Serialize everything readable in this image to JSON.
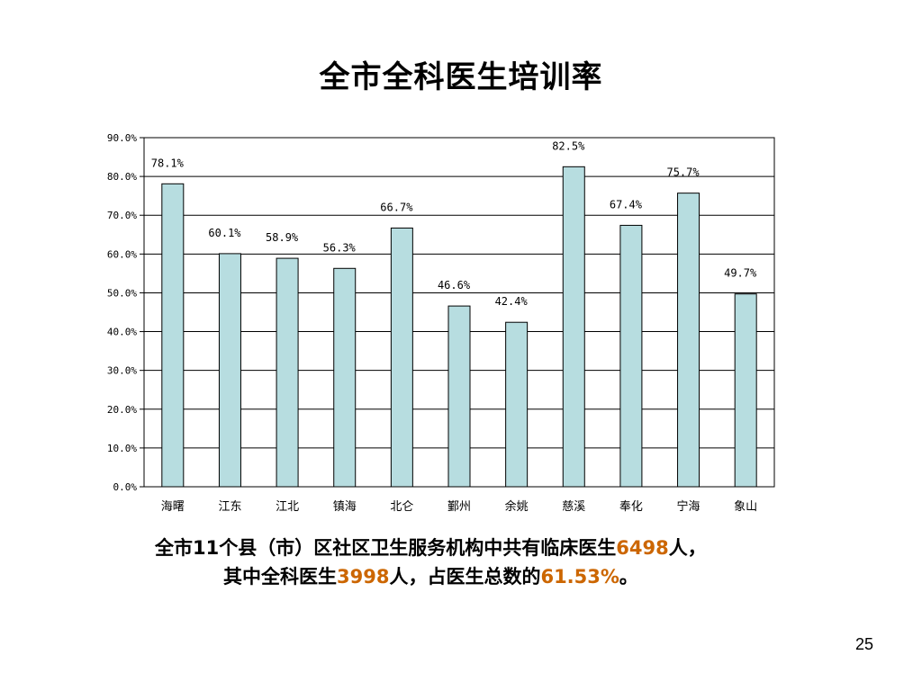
{
  "slide": {
    "title": "全市全科医生培训率",
    "page_number": "25",
    "summary": {
      "line1_a": "全市11个县（市）区社区卫生服务机构中共有临床医生",
      "line1_num": "6498",
      "line1_b": "人，",
      "line2_a": "其中全科医生",
      "line2_num": "3998",
      "line2_b": "人，占医生总数的",
      "line2_pct": "61.53%",
      "line2_c": "。"
    }
  },
  "colors": {
    "bar_fill": "#b7dde0",
    "highlight": "#cc6600"
  },
  "chart_data": {
    "type": "bar",
    "categories": [
      "海曙",
      "江东",
      "江北",
      "镇海",
      "北仑",
      "鄞州",
      "余姚",
      "慈溪",
      "奉化",
      "宁海",
      "象山"
    ],
    "values": [
      78.1,
      60.1,
      58.9,
      56.3,
      66.7,
      46.6,
      42.4,
      82.5,
      67.4,
      75.7,
      49.7
    ],
    "data_labels": [
      "78.1%",
      "60.1%",
      "58.9%",
      "56.3%",
      "66.7%",
      "46.6%",
      "42.4%",
      "82.5%",
      "67.4%",
      "75.7%",
      "49.7%"
    ],
    "y_ticks": [
      0,
      10,
      20,
      30,
      40,
      50,
      60,
      70,
      80,
      90
    ],
    "y_tick_labels": [
      "0.0%",
      "10.0%",
      "20.0%",
      "30.0%",
      "40.0%",
      "50.0%",
      "60.0%",
      "70.0%",
      "80.0%",
      "90.0%"
    ],
    "ylim": [
      0,
      90
    ],
    "grid": true,
    "legend": "none"
  }
}
